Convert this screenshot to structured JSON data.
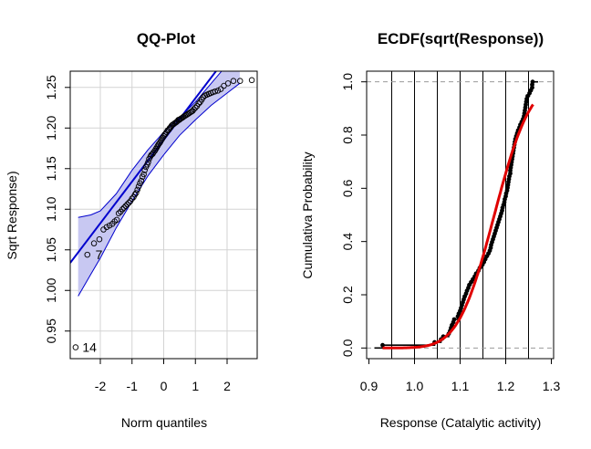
{
  "chart_data": [
    {
      "type": "scatter",
      "title": "QQ-Plot",
      "xlabel": "Norm quantiles",
      "ylabel": "Sqrt Response)",
      "xlim": [
        -2.95,
        2.95
      ],
      "ylim": [
        0.916,
        1.27
      ],
      "xticks": [
        -2,
        -1,
        0,
        1,
        2
      ],
      "yticks": [
        0.95,
        1.0,
        1.05,
        1.1,
        1.15,
        1.2,
        1.25
      ],
      "ytick_labels": [
        "0.95",
        "1.00",
        "1.05",
        "1.10",
        "1.15",
        "1.20",
        "1.25"
      ],
      "grid": true,
      "reference_line": {
        "x": [
          -2.95,
          1.65
        ],
        "y": [
          1.034,
          1.27
        ],
        "color": "#0000cd"
      },
      "confidence_band": {
        "x": [
          -2.7,
          -2.3,
          -2.0,
          -1.5,
          -1.0,
          -0.5,
          0.0,
          0.5,
          1.0,
          1.5,
          2.0,
          2.4
        ],
        "upper": [
          1.09,
          1.093,
          1.098,
          1.119,
          1.148,
          1.173,
          1.195,
          1.213,
          1.232,
          1.255,
          1.278,
          1.3
        ],
        "lower": [
          0.993,
          1.02,
          1.04,
          1.077,
          1.11,
          1.141,
          1.167,
          1.191,
          1.21,
          1.228,
          1.243,
          1.255
        ],
        "fill": "#c8c8f2",
        "stroke": "#0000cd"
      },
      "point_labels": [
        {
          "text": "7",
          "x": -2.27,
          "y": 1.044
        },
        {
          "text": "14",
          "x": -2.68,
          "y": 0.93
        }
      ],
      "series": [
        {
          "x": [
            -2.78,
            -2.41,
            -2.2,
            -2.03,
            -1.9,
            -1.8,
            -1.71,
            -1.62,
            -1.55,
            -1.48,
            -1.42,
            -1.36,
            -1.3,
            -1.25,
            -1.2,
            -1.15,
            -1.1,
            -1.05,
            -1.0,
            -0.95,
            -0.91,
            -0.87,
            -0.83,
            -0.79,
            -0.75,
            -0.71,
            -0.67,
            -0.63,
            -0.6,
            -0.56,
            -0.52,
            -0.49,
            -0.46,
            -0.42,
            -0.39,
            -0.35,
            -0.32,
            -0.28,
            -0.25,
            -0.22,
            -0.19,
            -0.16,
            -0.12,
            -0.09,
            -0.06,
            -0.03,
            0.0,
            0.03,
            0.06,
            0.09,
            0.12,
            0.16,
            0.19,
            0.22,
            0.25,
            0.28,
            0.32,
            0.35,
            0.39,
            0.42,
            0.46,
            0.49,
            0.52,
            0.56,
            0.6,
            0.63,
            0.67,
            0.71,
            0.75,
            0.79,
            0.83,
            0.87,
            0.91,
            0.95,
            1.0,
            1.05,
            1.1,
            1.15,
            1.2,
            1.25,
            1.3,
            1.36,
            1.42,
            1.48,
            1.55,
            1.62,
            1.71,
            1.8,
            1.9,
            2.03,
            2.2,
            2.41,
            2.78
          ],
          "y": [
            0.93,
            1.044,
            1.058,
            1.063,
            1.075,
            1.078,
            1.08,
            1.082,
            1.085,
            1.087,
            1.095,
            1.097,
            1.1,
            1.102,
            1.104,
            1.106,
            1.108,
            1.11,
            1.113,
            1.115,
            1.118,
            1.12,
            1.124,
            1.128,
            1.132,
            1.135,
            1.14,
            1.143,
            1.148,
            1.152,
            1.155,
            1.158,
            1.162,
            1.165,
            1.167,
            1.168,
            1.17,
            1.172,
            1.174,
            1.176,
            1.178,
            1.18,
            1.182,
            1.184,
            1.186,
            1.188,
            1.19,
            1.192,
            1.193,
            1.195,
            1.197,
            1.198,
            1.2,
            1.201,
            1.203,
            1.204,
            1.205,
            1.206,
            1.207,
            1.208,
            1.21,
            1.21,
            1.211,
            1.212,
            1.213,
            1.214,
            1.215,
            1.216,
            1.217,
            1.218,
            1.219,
            1.22,
            1.221,
            1.223,
            1.225,
            1.227,
            1.23,
            1.232,
            1.235,
            1.238,
            1.24,
            1.241,
            1.242,
            1.243,
            1.244,
            1.245,
            1.246,
            1.248,
            1.252,
            1.255,
            1.258,
            1.258,
            1.259
          ]
        }
      ]
    },
    {
      "type": "line",
      "title": "ECDF(sqrt(Response))",
      "xlabel": "Response (Catalytic activity)",
      "ylabel": "Cumulativa Probability",
      "xlim": [
        0.895,
        1.305
      ],
      "ylim": [
        -0.04,
        1.04
      ],
      "xticks": [
        0.9,
        1.0,
        1.1,
        1.2,
        1.3
      ],
      "xtick_labels": [
        "0.9",
        "1.0",
        "1.1",
        "1.2",
        "1.3"
      ],
      "yticks": [
        0.0,
        0.2,
        0.4,
        0.6,
        0.8,
        1.0
      ],
      "ytick_labels": [
        "0.0",
        "0.2",
        "0.4",
        "0.6",
        "0.8",
        "1.0"
      ],
      "vertical_gridlines": [
        0.95,
        1.0,
        1.05,
        1.1,
        1.15,
        1.2,
        1.25
      ],
      "horizontal_dashed": [
        0.0,
        1.0
      ],
      "series": [
        {
          "name": "ECDF",
          "color": "#000000",
          "x": [
            0.93,
            1.044,
            1.058,
            1.063,
            1.075,
            1.078,
            1.08,
            1.082,
            1.085,
            1.087,
            1.095,
            1.097,
            1.1,
            1.102,
            1.104,
            1.106,
            1.108,
            1.11,
            1.113,
            1.115,
            1.118,
            1.12,
            1.124,
            1.128,
            1.132,
            1.135,
            1.14,
            1.143,
            1.148,
            1.152,
            1.155,
            1.158,
            1.162,
            1.165,
            1.167,
            1.168,
            1.17,
            1.172,
            1.174,
            1.176,
            1.178,
            1.18,
            1.182,
            1.184,
            1.186,
            1.188,
            1.19,
            1.192,
            1.193,
            1.195,
            1.197,
            1.198,
            1.2,
            1.201,
            1.203,
            1.204,
            1.205,
            1.206,
            1.207,
            1.208,
            1.21,
            1.21,
            1.211,
            1.212,
            1.213,
            1.214,
            1.215,
            1.216,
            1.217,
            1.218,
            1.219,
            1.22,
            1.221,
            1.223,
            1.225,
            1.227,
            1.23,
            1.232,
            1.235,
            1.238,
            1.24,
            1.241,
            1.242,
            1.243,
            1.244,
            1.245,
            1.246,
            1.248,
            1.252,
            1.255,
            1.258,
            1.258,
            1.259
          ]
        },
        {
          "name": "Normal CDF",
          "color": "#e00000",
          "type": "normal_cdf",
          "mean": 1.175,
          "sd": 0.062,
          "x_range": [
            0.93,
            1.26
          ]
        }
      ]
    }
  ]
}
